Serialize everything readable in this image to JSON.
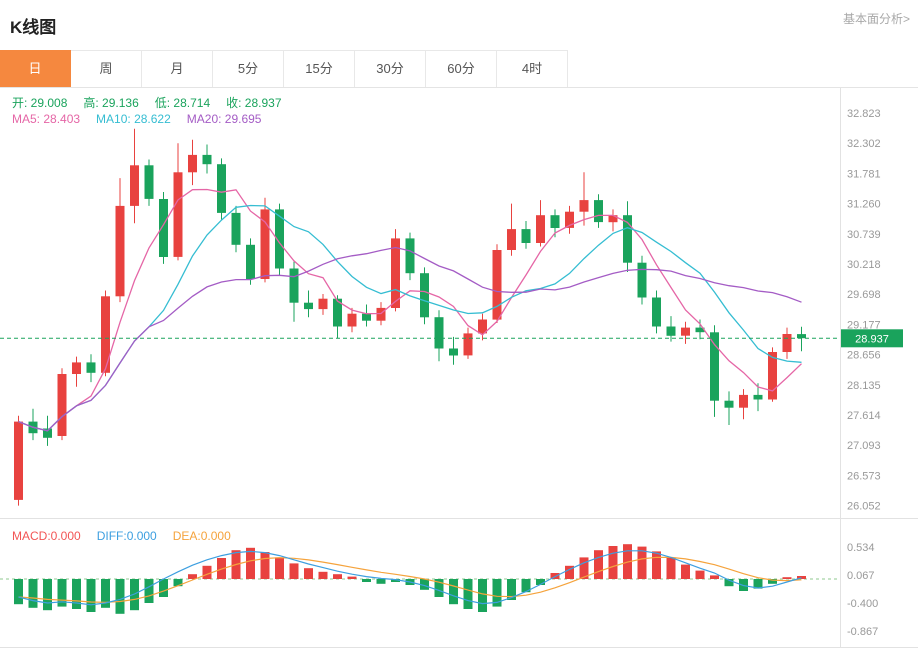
{
  "header": {
    "title": "K线图",
    "link": "基本面分析>"
  },
  "tabs": [
    {
      "label": "日",
      "active": true
    },
    {
      "label": "周",
      "active": false
    },
    {
      "label": "月",
      "active": false
    },
    {
      "label": "5分",
      "active": false
    },
    {
      "label": "15分",
      "active": false
    },
    {
      "label": "30分",
      "active": false
    },
    {
      "label": "60分",
      "active": false
    },
    {
      "label": "4时",
      "active": false
    }
  ],
  "colors": {
    "accent_orange": "#f5883f",
    "up_red": "#e8423f",
    "down_green": "#1aa35c",
    "axis_text": "#999999",
    "border": "#e2e2e2"
  },
  "ohlc_legend": {
    "color": "#1aa35c",
    "items": [
      {
        "name": "open",
        "label": "开: ",
        "value": "29.008"
      },
      {
        "name": "high",
        "label": "高: ",
        "value": "29.136"
      },
      {
        "name": "low",
        "label": "低: ",
        "value": "28.714"
      },
      {
        "name": "close",
        "label": "收: ",
        "value": "28.937"
      }
    ]
  },
  "ma_legend": [
    {
      "name": "ma5",
      "label": "MA5: ",
      "value": "28.403",
      "color": "#e566a6"
    },
    {
      "name": "ma10",
      "label": "MA10: ",
      "value": "28.622",
      "color": "#35bdd2"
    },
    {
      "name": "ma20",
      "label": "MA20: ",
      "value": "29.695",
      "color": "#a45cc5"
    }
  ],
  "macd_legend": [
    {
      "name": "macd",
      "label": "MACD:",
      "value": "0.000",
      "color": "#f25555"
    },
    {
      "name": "diff",
      "label": "DIFF:",
      "value": "0.000",
      "color": "#3d9fe0"
    },
    {
      "name": "dea",
      "label": "DEA:",
      "value": "0.000",
      "color": "#f5a33c"
    }
  ],
  "chart_data": [
    {
      "type": "candlestick",
      "title": "K线图 (日K)",
      "legend_position": "top-left",
      "grid": false,
      "y_axis_labels": [
        "32.823",
        "32.302",
        "31.781",
        "31.260",
        "30.739",
        "30.218",
        "29.698",
        "29.177",
        "28.656",
        "28.135",
        "27.614",
        "27.093",
        "26.573",
        "26.052"
      ],
      "ylim": [
        25.84,
        33.25
      ],
      "last_price": {
        "display": "28.937",
        "numeric": 28.937
      },
      "colors": {
        "up": "#e8423f",
        "down": "#1aa35c"
      },
      "overlays": [
        {
          "name": "MA5",
          "window": 5,
          "color": "#e566a6"
        },
        {
          "name": "MA10",
          "window": 10,
          "color": "#35bdd2"
        },
        {
          "name": "MA20",
          "window": 20,
          "color": "#a45cc5"
        }
      ],
      "candles_ohlc": [
        [
          26.15,
          27.6,
          26.05,
          27.5
        ],
        [
          27.5,
          27.72,
          27.18,
          27.3
        ],
        [
          27.38,
          27.6,
          27.08,
          27.22
        ],
        [
          27.25,
          28.42,
          27.18,
          28.32
        ],
        [
          28.32,
          28.62,
          28.1,
          28.52
        ],
        [
          28.52,
          28.66,
          28.18,
          28.34
        ],
        [
          28.34,
          29.76,
          28.28,
          29.66
        ],
        [
          29.66,
          31.7,
          29.56,
          31.22
        ],
        [
          31.22,
          32.55,
          30.92,
          31.92
        ],
        [
          31.92,
          32.02,
          31.22,
          31.34
        ],
        [
          31.34,
          31.46,
          30.22,
          30.34
        ],
        [
          30.34,
          32.3,
          30.28,
          31.8
        ],
        [
          31.8,
          32.36,
          31.58,
          32.1
        ],
        [
          32.1,
          32.28,
          31.78,
          31.94
        ],
        [
          31.94,
          32.04,
          30.98,
          31.1
        ],
        [
          31.1,
          31.22,
          30.42,
          30.55
        ],
        [
          30.55,
          30.66,
          29.86,
          29.96
        ],
        [
          29.96,
          31.36,
          29.9,
          31.16
        ],
        [
          31.16,
          31.26,
          30.02,
          30.14
        ],
        [
          30.14,
          30.26,
          29.22,
          29.55
        ],
        [
          29.55,
          29.76,
          29.3,
          29.44
        ],
        [
          29.44,
          29.7,
          29.34,
          29.62
        ],
        [
          29.62,
          29.68,
          28.94,
          29.14
        ],
        [
          29.14,
          29.46,
          29.04,
          29.36
        ],
        [
          29.36,
          29.52,
          29.14,
          29.24
        ],
        [
          29.24,
          29.56,
          29.16,
          29.46
        ],
        [
          29.46,
          30.82,
          29.4,
          30.66
        ],
        [
          30.66,
          30.76,
          29.94,
          30.06
        ],
        [
          30.06,
          30.16,
          29.18,
          29.3
        ],
        [
          29.3,
          29.42,
          28.54,
          28.76
        ],
        [
          28.76,
          28.96,
          28.48,
          28.64
        ],
        [
          28.64,
          29.12,
          28.58,
          29.02
        ],
        [
          29.02,
          29.36,
          28.9,
          29.26
        ],
        [
          29.26,
          30.56,
          29.2,
          30.46
        ],
        [
          30.46,
          31.26,
          30.36,
          30.82
        ],
        [
          30.82,
          30.96,
          30.48,
          30.58
        ],
        [
          30.58,
          31.32,
          30.52,
          31.06
        ],
        [
          31.06,
          31.16,
          30.68,
          30.84
        ],
        [
          30.84,
          31.22,
          30.74,
          31.12
        ],
        [
          31.12,
          31.8,
          30.88,
          31.32
        ],
        [
          31.32,
          31.42,
          30.84,
          30.94
        ],
        [
          30.94,
          31.16,
          30.78,
          31.06
        ],
        [
          31.06,
          31.3,
          30.08,
          30.24
        ],
        [
          30.24,
          30.36,
          29.52,
          29.64
        ],
        [
          29.64,
          29.76,
          29.02,
          29.14
        ],
        [
          29.14,
          29.32,
          28.88,
          28.98
        ],
        [
          28.98,
          29.22,
          28.84,
          29.12
        ],
        [
          29.12,
          29.26,
          28.92,
          29.04
        ],
        [
          29.04,
          29.16,
          27.58,
          27.86
        ],
        [
          27.86,
          28.02,
          27.44,
          27.74
        ],
        [
          27.74,
          28.06,
          27.54,
          27.96
        ],
        [
          27.96,
          28.16,
          27.68,
          27.88
        ],
        [
          27.88,
          28.78,
          27.84,
          28.7
        ],
        [
          28.7,
          29.12,
          28.58,
          29.01
        ],
        [
          29.008,
          29.136,
          28.714,
          28.937
        ]
      ]
    },
    {
      "type": "bar",
      "name": "MACD",
      "y_axis_labels": [
        "0.534",
        "0.067",
        "-0.400",
        "-0.867"
      ],
      "ylim": [
        -1.15,
        1.02
      ],
      "zero_line": true,
      "colors": {
        "pos": "#e8423f",
        "neg": "#1aa35c",
        "diff": "#3d9fe0",
        "dea": "#f5a33c"
      },
      "histogram": [
        -0.42,
        -0.48,
        -0.52,
        -0.46,
        -0.5,
        -0.55,
        -0.48,
        -0.58,
        -0.52,
        -0.4,
        -0.3,
        -0.12,
        0.08,
        0.22,
        0.35,
        0.48,
        0.52,
        0.45,
        0.36,
        0.26,
        0.18,
        0.12,
        0.08,
        0.04,
        -0.05,
        -0.08,
        -0.05,
        -0.1,
        -0.18,
        -0.3,
        -0.42,
        -0.5,
        -0.55,
        -0.46,
        -0.35,
        -0.22,
        -0.1,
        0.1,
        0.22,
        0.36,
        0.48,
        0.55,
        0.58,
        0.54,
        0.46,
        0.36,
        0.24,
        0.14,
        0.06,
        -0.12,
        -0.2,
        -0.16,
        -0.08,
        0.03,
        0.05
      ],
      "diff_line": [
        -0.3,
        -0.36,
        -0.4,
        -0.38,
        -0.4,
        -0.43,
        -0.4,
        -0.34,
        -0.25,
        -0.13,
        0.0,
        0.12,
        0.23,
        0.32,
        0.39,
        0.44,
        0.46,
        0.44,
        0.39,
        0.32,
        0.25,
        0.19,
        0.13,
        0.08,
        0.04,
        0.01,
        -0.01,
        -0.05,
        -0.11,
        -0.19,
        -0.28,
        -0.36,
        -0.41,
        -0.39,
        -0.31,
        -0.21,
        -0.09,
        0.04,
        0.16,
        0.27,
        0.36,
        0.43,
        0.47,
        0.47,
        0.43,
        0.36,
        0.27,
        0.18,
        0.1,
        -0.02,
        -0.11,
        -0.15,
        -0.12,
        -0.05,
        0.02
      ]
    }
  ]
}
